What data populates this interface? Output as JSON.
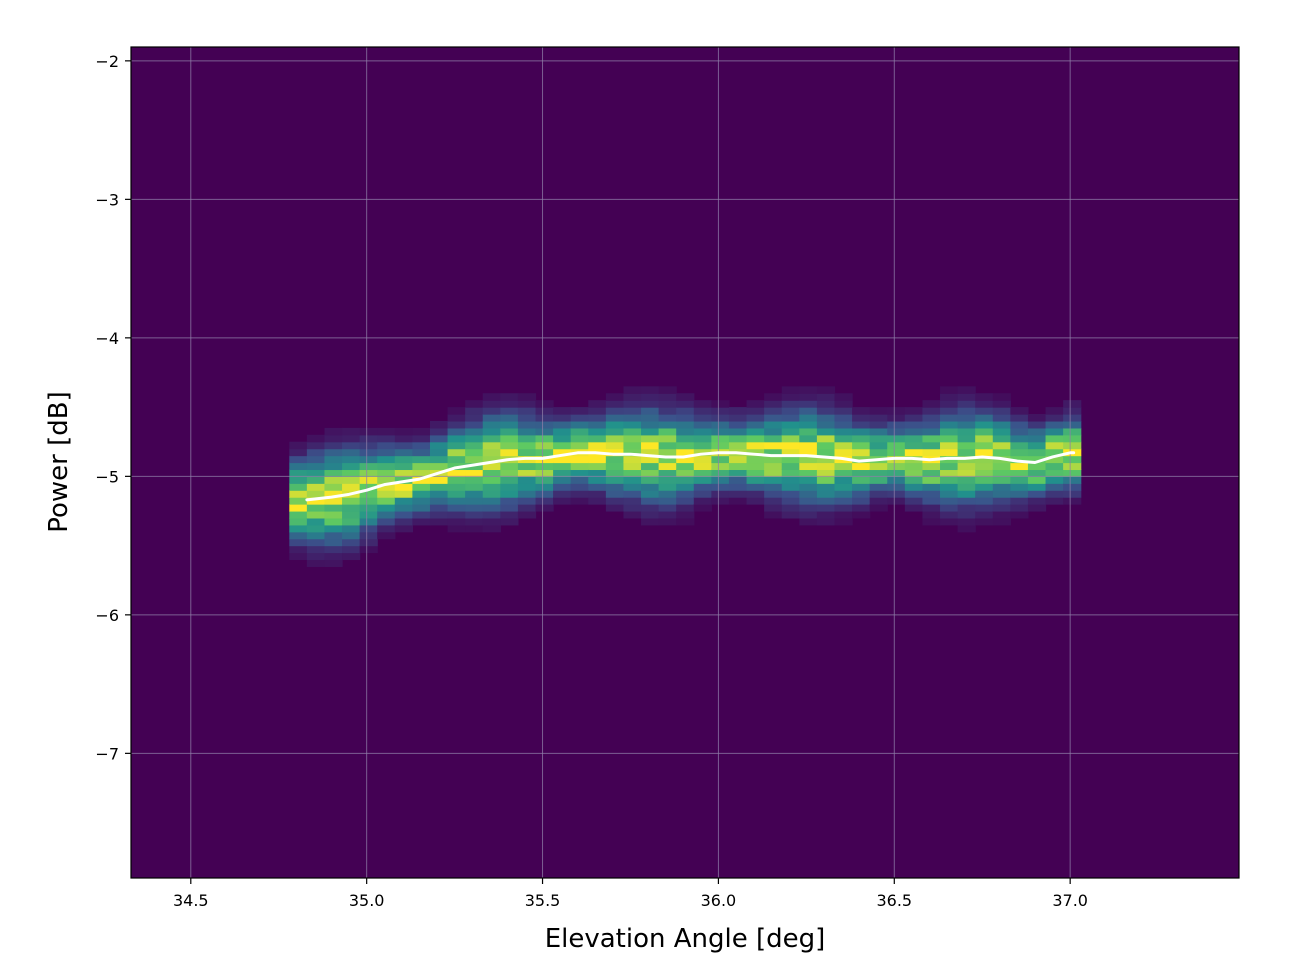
{
  "chart_data": {
    "type": "heatmap",
    "title": "",
    "xlabel": "Elevation Angle [deg]",
    "ylabel": "Power [dB]",
    "xlim": [
      34.33,
      37.48
    ],
    "ylim": [
      -7.9,
      -1.9
    ],
    "x_ticks": [
      34.5,
      35.0,
      35.5,
      36.0,
      36.5,
      37.0
    ],
    "x_tick_labels": [
      "34.5",
      "35.0",
      "35.5",
      "36.0",
      "36.5",
      "37.0"
    ],
    "y_ticks": [
      -2,
      -3,
      -4,
      -5,
      -6,
      -7
    ],
    "y_tick_labels": [
      "−2",
      "−3",
      "−4",
      "−5",
      "−6",
      "−7"
    ],
    "grid": true,
    "colormap": "viridis",
    "colormap_stops": [
      "#440154",
      "#3b528b",
      "#21918c",
      "#5ec962",
      "#fde725"
    ],
    "background_color": "#440154",
    "grid_color": "#8f7fa8",
    "line_color": "#ffffff",
    "histogram": {
      "x_range": [
        34.78,
        37.03
      ],
      "y_range": [
        -5.85,
        -4.0
      ],
      "x_bins": 45,
      "y_bins": 37
    },
    "mean_line": {
      "name": "",
      "x": [
        34.83,
        34.9,
        34.95,
        35.0,
        35.05,
        35.1,
        35.15,
        35.2,
        35.25,
        35.3,
        35.35,
        35.4,
        35.45,
        35.5,
        35.55,
        35.6,
        35.65,
        35.7,
        35.75,
        35.8,
        35.85,
        35.9,
        35.95,
        36.0,
        36.05,
        36.1,
        36.15,
        36.2,
        36.25,
        36.3,
        36.35,
        36.4,
        36.45,
        36.5,
        36.55,
        36.6,
        36.65,
        36.7,
        36.75,
        36.8,
        36.85,
        36.9,
        36.95,
        37.0,
        37.01
      ],
      "y": [
        -5.17,
        -5.15,
        -5.13,
        -5.1,
        -5.06,
        -5.04,
        -5.02,
        -4.98,
        -4.94,
        -4.92,
        -4.9,
        -4.88,
        -4.87,
        -4.87,
        -4.85,
        -4.83,
        -4.83,
        -4.84,
        -4.84,
        -4.85,
        -4.86,
        -4.86,
        -4.84,
        -4.83,
        -4.83,
        -4.84,
        -4.85,
        -4.85,
        -4.85,
        -4.86,
        -4.87,
        -4.89,
        -4.88,
        -4.87,
        -4.87,
        -4.88,
        -4.87,
        -4.87,
        -4.86,
        -4.87,
        -4.89,
        -4.9,
        -4.86,
        -4.83,
        -4.83
      ]
    }
  }
}
